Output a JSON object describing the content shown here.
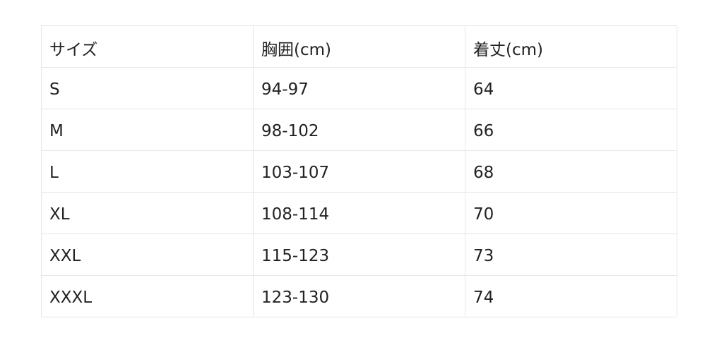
{
  "table": {
    "headers": [
      "サイズ",
      "胸囲(cm)",
      "着丈(cm)"
    ],
    "rows": [
      [
        "S",
        "94-97",
        "64"
      ],
      [
        "M",
        "98-102",
        "66"
      ],
      [
        "L",
        "103-107",
        "68"
      ],
      [
        "XL",
        "108-114",
        "70"
      ],
      [
        "XXL",
        "115-123",
        "73"
      ],
      [
        "XXXL",
        "123-130",
        "74"
      ]
    ]
  }
}
